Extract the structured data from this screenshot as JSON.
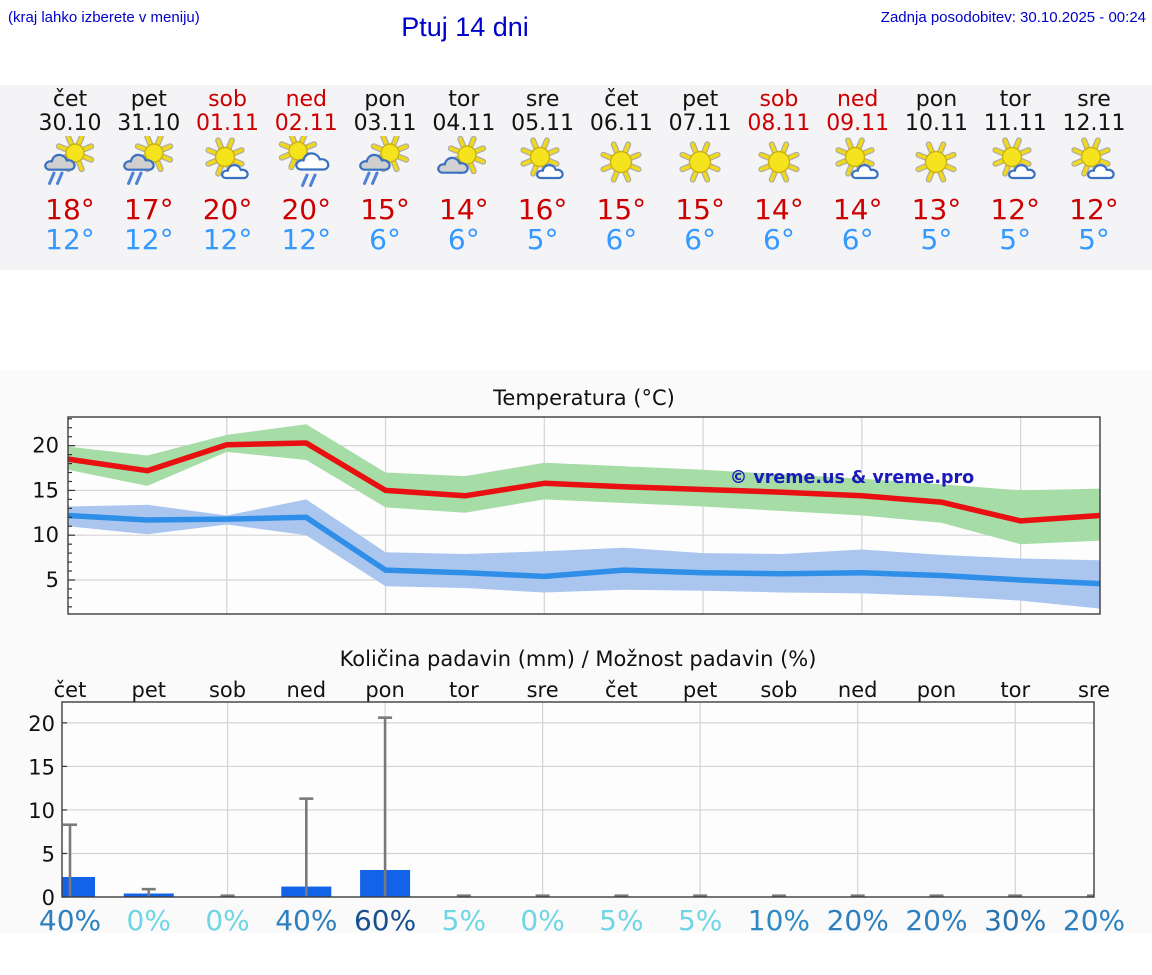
{
  "header": {
    "hint": "(kraj lahko izberete v meniju)",
    "title": "Ptuj 14 dni",
    "updated": "Zadnja posodobitev: 30.10.2025 - 00:24"
  },
  "forecast": {
    "days": [
      {
        "label": "čet",
        "date": "30.10",
        "weekend": false,
        "icon": "sun-cloud-rain-icon",
        "high": "18°",
        "low": "12°",
        "prob": "40%",
        "prob_color": "#2d7fbe"
      },
      {
        "label": "pet",
        "date": "31.10",
        "weekend": false,
        "icon": "sun-cloud-rain-icon",
        "high": "17°",
        "low": "12°",
        "prob": "0%",
        "prob_color": "#70d5e5"
      },
      {
        "label": "sob",
        "date": "01.11",
        "weekend": true,
        "icon": "sun-small-cloud-icon",
        "high": "20°",
        "low": "12°",
        "prob": "0%",
        "prob_color": "#70d5e5"
      },
      {
        "label": "ned",
        "date": "02.11",
        "weekend": true,
        "icon": "sun-bigcloud-rain-icon",
        "high": "20°",
        "low": "12°",
        "prob": "40%",
        "prob_color": "#2d7fbe"
      },
      {
        "label": "pon",
        "date": "03.11",
        "weekend": false,
        "icon": "sun-cloud-rain-icon",
        "high": "15°",
        "low": "6°",
        "prob": "60%",
        "prob_color": "#17508e"
      },
      {
        "label": "tor",
        "date": "04.11",
        "weekend": false,
        "icon": "sun-graycloud-icon",
        "high": "14°",
        "low": "6°",
        "prob": "5%",
        "prob_color": "#70d5e5"
      },
      {
        "label": "sre",
        "date": "05.11",
        "weekend": false,
        "icon": "sun-small-cloud-icon",
        "high": "16°",
        "low": "5°",
        "prob": "0%",
        "prob_color": "#70d5e5"
      },
      {
        "label": "čet",
        "date": "06.11",
        "weekend": false,
        "icon": "sunny-icon",
        "high": "15°",
        "low": "6°",
        "prob": "5%",
        "prob_color": "#70d5e5"
      },
      {
        "label": "pet",
        "date": "07.11",
        "weekend": false,
        "icon": "sunny-icon",
        "high": "15°",
        "low": "6°",
        "prob": "5%",
        "prob_color": "#70d5e5"
      },
      {
        "label": "sob",
        "date": "08.11",
        "weekend": true,
        "icon": "sunny-icon",
        "high": "14°",
        "low": "6°",
        "prob": "10%",
        "prob_color": "#2d8ac4"
      },
      {
        "label": "ned",
        "date": "09.11",
        "weekend": true,
        "icon": "sun-small-cloud-icon",
        "high": "14°",
        "low": "6°",
        "prob": "20%",
        "prob_color": "#2d7fbe"
      },
      {
        "label": "pon",
        "date": "10.11",
        "weekend": false,
        "icon": "sunny-icon",
        "high": "13°",
        "low": "5°",
        "prob": "20%",
        "prob_color": "#2d7fbe"
      },
      {
        "label": "tor",
        "date": "11.11",
        "weekend": false,
        "icon": "sun-small-cloud-icon",
        "high": "12°",
        "low": "5°",
        "prob": "30%",
        "prob_color": "#2673b0"
      },
      {
        "label": "sre",
        "date": "12.11",
        "weekend": false,
        "icon": "sun-small-cloud-icon",
        "high": "12°",
        "low": "5°",
        "prob": "20%",
        "prob_color": "#2d7fbe"
      }
    ]
  },
  "chart_data": [
    {
      "type": "line",
      "title": "Temperatura (°C)",
      "watermark": "© vreme.us & vreme.pro",
      "x_labels": [
        "30.10",
        "31.10",
        "01.11",
        "02.11",
        "03.11",
        "04.11",
        "05.11",
        "06.11",
        "07.11",
        "08.11",
        "09.11",
        "10.11",
        "11.11",
        "12.11"
      ],
      "ylim": [
        1.2,
        23.2
      ],
      "yticks": [
        5,
        10,
        15,
        20
      ],
      "grid": true,
      "legend_position": "none",
      "series": [
        {
          "name": "max_temp",
          "color": "#e81010",
          "values": [
            18.5,
            17.2,
            20.1,
            20.3,
            15.0,
            14.4,
            15.8,
            15.4,
            15.1,
            14.8,
            14.4,
            13.7,
            11.6,
            12.2
          ]
        },
        {
          "name": "min_temp",
          "color": "#2f8fe8",
          "values": [
            12.2,
            11.7,
            11.8,
            12.0,
            6.1,
            5.8,
            5.4,
            6.1,
            5.8,
            5.7,
            5.8,
            5.5,
            5.0,
            4.6
          ]
        },
        {
          "name": "max_range_top",
          "color": "#a6dca6",
          "values": [
            19.9,
            18.9,
            21.2,
            22.4,
            17.0,
            16.6,
            18.1,
            17.7,
            17.3,
            16.8,
            16.3,
            15.7,
            15.0,
            15.2
          ]
        },
        {
          "name": "max_range_bottom",
          "color": "#a6dca6",
          "values": [
            17.3,
            15.5,
            19.3,
            18.4,
            13.1,
            12.5,
            14.0,
            13.6,
            13.2,
            12.7,
            12.2,
            11.4,
            9.0,
            9.4
          ]
        },
        {
          "name": "min_range_top",
          "color": "#abc6ee",
          "values": [
            13.2,
            13.4,
            12.2,
            14.0,
            8.1,
            7.9,
            8.2,
            8.6,
            8.0,
            7.9,
            8.4,
            7.8,
            7.4,
            7.2
          ]
        },
        {
          "name": "min_range_bottom",
          "color": "#abc6ee",
          "values": [
            11.0,
            10.1,
            11.2,
            10.0,
            4.3,
            4.1,
            3.6,
            3.9,
            3.8,
            3.6,
            3.5,
            3.2,
            2.7,
            1.8
          ]
        }
      ]
    },
    {
      "type": "bar",
      "title": "Količina padavin (mm) / Možnost padavin (%)",
      "categories": [
        "čet",
        "pet",
        "sob",
        "ned",
        "pon",
        "tor",
        "sre",
        "čet",
        "pet",
        "sob",
        "ned",
        "pon",
        "tor",
        "sre"
      ],
      "values_mm": [
        2.3,
        0.4,
        0,
        1.2,
        3.1,
        0,
        0,
        0,
        0,
        0,
        0,
        0,
        0,
        0
      ],
      "whisker_max_mm": [
        8.3,
        0.9,
        0.15,
        11.3,
        20.6,
        0.15,
        0.15,
        0.15,
        0.15,
        0.15,
        0.15,
        0.15,
        0.15,
        0.15
      ],
      "probability_pct": [
        40,
        0,
        0,
        40,
        60,
        5,
        0,
        5,
        5,
        10,
        20,
        20,
        30,
        20
      ],
      "ylim": [
        0,
        22.4
      ],
      "yticks": [
        0,
        5,
        10,
        15,
        20
      ],
      "grid": true
    }
  ],
  "colors": {
    "header_blue": "#0000cc",
    "weekend_red": "#cc0000",
    "high_temp_red": "#cc0000",
    "low_temp_blue": "#3399ff",
    "line_max": "#e81010",
    "line_min": "#2f8fe8",
    "band_max": "#a6dca6",
    "band_min": "#abc6ee",
    "bar_blue": "#1263e8",
    "whisker_gray": "#7a7a7a",
    "grid_gray": "#d4d4d4",
    "strip_bg": "#f4f4f6",
    "watermark_blue": "#1a1ab8"
  }
}
